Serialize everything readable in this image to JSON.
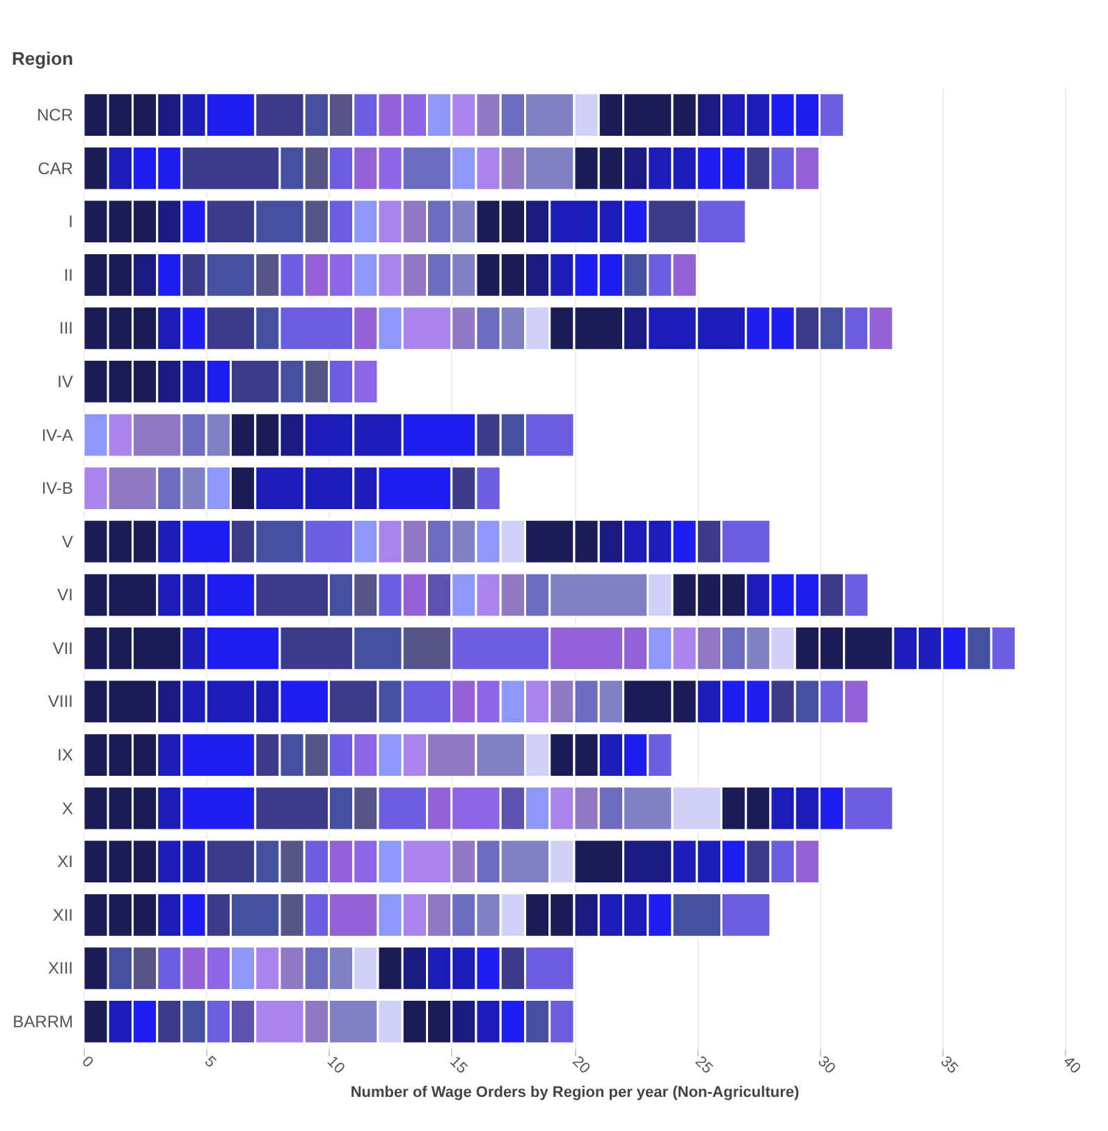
{
  "chart_data": {
    "type": "bar",
    "orientation": "horizontal",
    "stacked": true,
    "xlabel": "Number of Wage Orders by Region per year (Non-Agriculture)",
    "ylabel": "Region",
    "categories": [
      "NCR",
      "CAR",
      "I",
      "II",
      "III",
      "IV",
      "IV-A",
      "IV-B",
      "V",
      "VI",
      "VII",
      "VIII",
      "IX",
      "X",
      "XI",
      "XII",
      "XIII",
      "BARRM"
    ],
    "xlim": [
      0,
      40
    ],
    "xticks": [
      0,
      5,
      10,
      15,
      20,
      25,
      30,
      35,
      40
    ],
    "grid": "x",
    "series": [
      {
        "values": [
          1,
          1,
          1,
          1,
          1,
          1,
          1,
          1,
          1,
          1,
          1,
          1,
          1,
          1,
          1,
          1,
          1,
          1
        ],
        "colors": [
          "#1b1b55",
          "#1b1b55",
          "#1b1b55",
          "#1b1b55",
          "#1b1b55",
          "#1b1b55",
          "#8e98f8",
          "#a884ec",
          "#1b1b55",
          "#1b1b55",
          "#1b1b55",
          "#1b1b55",
          "#1b1b55",
          "#1b1b55",
          "#1b1b55",
          "#1b1b55",
          "#1b1b55",
          "#1b1b55"
        ]
      },
      {
        "values": [
          1,
          1,
          1,
          1,
          1,
          1,
          1,
          2,
          1,
          2,
          1,
          2,
          1,
          1,
          1,
          1,
          1,
          1
        ],
        "colors": [
          "#1b1b55",
          "#1c1cb8",
          "#1b1b55",
          "#1b1b55",
          "#1b1b55",
          "#1b1b55",
          "#a884ec",
          "#9078c4",
          "#1b1b55",
          "#1b1b55",
          "#1b1b55",
          "#1b1b55",
          "#1b1b55",
          "#1b1b55",
          "#1b1b55",
          "#1b1b55",
          "#4650a0",
          "#1c1cb8"
        ]
      },
      {
        "values": [
          1,
          1,
          1,
          1,
          1,
          1,
          2,
          1,
          1,
          1,
          2,
          1,
          1,
          1,
          1,
          1,
          1,
          1
        ],
        "colors": [
          "#1b1b55",
          "#1e1ef0",
          "#1b1b55",
          "#1a1a80",
          "#1b1b55",
          "#1b1b55",
          "#9078c4",
          "#6c6cc0",
          "#1b1b55",
          "#1c1cb8",
          "#1b1b55",
          "#1a1a80",
          "#1b1b55",
          "#1b1b55",
          "#1b1b55",
          "#1b1b55",
          "#555588",
          "#1e1ef0"
        ]
      },
      {
        "values": [
          1,
          1,
          1,
          1,
          1,
          1,
          1,
          1,
          1,
          1,
          1,
          1,
          1,
          1,
          1,
          1,
          1,
          1
        ],
        "colors": [
          "#1a1a80",
          "#1e1ef0",
          "#1a1a80",
          "#1e1ef0",
          "#1c1cb8",
          "#1a1a80",
          "#6c6cc0",
          "#8080c4",
          "#1c1cb8",
          "#1c1cb8",
          "#1c1cb8",
          "#1c1cb8",
          "#1c1cb8",
          "#1c1cb8",
          "#1c1cb8",
          "#1c1cb8",
          "#6c5ee0",
          "#3b3b8a"
        ]
      },
      {
        "values": [
          1,
          4,
          1,
          1,
          1,
          1,
          1,
          1,
          2,
          2,
          3,
          2,
          3,
          3,
          1,
          1,
          1,
          1
        ],
        "colors": [
          "#1c1cb8",
          "#3b3b8a",
          "#1e1ef0",
          "#3b3b8a",
          "#1e1ef0",
          "#1c1cb8",
          "#8080c4",
          "#8e98f8",
          "#1e1ef0",
          "#1e1ef0",
          "#1e1ef0",
          "#1c1cb8",
          "#1e1ef0",
          "#1e1ef0",
          "#1c1cb8",
          "#1e1ef0",
          "#9462d6",
          "#4650a0"
        ]
      },
      {
        "values": [
          2,
          1,
          2,
          2,
          2,
          1,
          1,
          1,
          1,
          3,
          3,
          1,
          1,
          3,
          2,
          1,
          1,
          1
        ],
        "colors": [
          "#1e1ef0",
          "#4650a0",
          "#3b3b8a",
          "#4650a0",
          "#3b3b8a",
          "#1e1ef0",
          "#1b1b55",
          "#1b1b55",
          "#3b3b8a",
          "#3b3b8a",
          "#3b3b8a",
          "#1c1cb8",
          "#3b3b8a",
          "#3b3b8a",
          "#3b3b8a",
          "#3b3b8a",
          "#8c66e4",
          "#6c5ee0"
        ]
      },
      {
        "values": [
          2,
          1,
          2,
          1,
          1,
          2,
          1,
          2,
          2,
          1,
          2,
          2,
          1,
          1,
          1,
          2,
          1,
          1
        ],
        "colors": [
          "#3b3b8a",
          "#555588",
          "#4650a0",
          "#555588",
          "#4650a0",
          "#3b3b8a",
          "#1b1b55",
          "#1c1cb8",
          "#4650a0",
          "#4650a0",
          "#4650a0",
          "#1e1ef0",
          "#4650a0",
          "#4650a0",
          "#4650a0",
          "#4650a0",
          "#8e98f8",
          "#5e52b0"
        ]
      },
      {
        "values": [
          1,
          1,
          1,
          1,
          3,
          1,
          1,
          2,
          2,
          1,
          2,
          2,
          1,
          1,
          1,
          1,
          1,
          2
        ],
        "colors": [
          "#4650a0",
          "#6c5ee0",
          "#555588",
          "#6c5ee0",
          "#6c5ee0",
          "#4650a0",
          "#1a1a80",
          "#1c1cb8",
          "#6c5ee0",
          "#555588",
          "#555588",
          "#3b3b8a",
          "#555588",
          "#555588",
          "#555588",
          "#555588",
          "#a884ec",
          "#a884ec"
        ]
      },
      {
        "values": [
          1,
          1,
          1,
          1,
          1,
          1,
          2,
          1,
          1,
          1,
          4,
          1,
          1,
          2,
          1,
          1,
          1,
          1
        ],
        "colors": [
          "#555588",
          "#9462d6",
          "#6c5ee0",
          "#9462d6",
          "#9462d6",
          "#555588",
          "#1c1cb8",
          "#1c1cb8",
          "#8e98f8",
          "#6c5ee0",
          "#6c5ee0",
          "#4650a0",
          "#6c5ee0",
          "#6c5ee0",
          "#6c5ee0",
          "#6c5ee0",
          "#9078c4",
          "#9078c4"
        ]
      },
      {
        "values": [
          1,
          1,
          1,
          1,
          1,
          1,
          2,
          3,
          1,
          1,
          3,
          2,
          1,
          1,
          1,
          2,
          1,
          2
        ],
        "colors": [
          "#6c5ee0",
          "#8c66e4",
          "#8e98f8",
          "#8c66e4",
          "#8e98f8",
          "#6c5ee0",
          "#1c1cb8",
          "#1e1ef0",
          "#a884ec",
          "#9462d6",
          "#9462d6",
          "#6c5ee0",
          "#8c66e4",
          "#9462d6",
          "#9462d6",
          "#9462d6",
          "#6c6cc0",
          "#8080c4"
        ]
      },
      {
        "values": [
          1,
          2,
          1,
          1,
          2,
          1,
          3,
          1,
          1,
          1,
          1,
          1,
          1,
          2,
          1,
          1,
          1,
          1
        ],
        "colors": [
          "#9462d6",
          "#6c6cc0",
          "#a884ec",
          "#8e98f8",
          "#a884ec",
          "#8c66e4",
          "#1e1ef0",
          "#3b3b8a",
          "#9078c4",
          "#5e52b0",
          "#9462d6",
          "#9462d6",
          "#8e98f8",
          "#8c66e4",
          "#8c66e4",
          "#8e98f8",
          "#8080c4",
          "#d0d0f8"
        ]
      },
      {
        "values": [
          1,
          1,
          1,
          1,
          1,
          null,
          1,
          1,
          1,
          1,
          1,
          1,
          1,
          1,
          1,
          1,
          1,
          1
        ],
        "colors": [
          "#8c66e4",
          "#8e98f8",
          "#9078c4",
          "#a884ec",
          "#9078c4",
          null,
          "#3b3b8a",
          "#6c5ee0",
          "#6c6cc0",
          "#8e98f8",
          "#8e98f8",
          "#8c66e4",
          "#a884ec",
          "#5e52b0",
          "#8e98f8",
          "#a884ec",
          "#d0d0f8",
          "#1b1b55"
        ]
      },
      {
        "values": [
          1,
          1,
          1,
          1,
          1,
          null,
          1,
          null,
          1,
          1,
          1,
          1,
          2,
          1,
          2,
          1,
          1,
          1
        ],
        "colors": [
          "#8e98f8",
          "#a884ec",
          "#6c6cc0",
          "#9078c4",
          "#6c6cc0",
          null,
          "#4650a0",
          null,
          "#8080c4",
          "#a884ec",
          "#a884ec",
          "#8e98f8",
          "#9078c4",
          "#8e98f8",
          "#a884ec",
          "#9078c4",
          "#1b1b55",
          "#1b1b55"
        ]
      },
      {
        "values": [
          1,
          1,
          1,
          1,
          1,
          null,
          2,
          null,
          1,
          1,
          1,
          1,
          2,
          1,
          1,
          1,
          1,
          1
        ],
        "colors": [
          "#a884ec",
          "#9078c4",
          "#8080c4",
          "#6c6cc0",
          "#8080c4",
          null,
          "#6c5ee0",
          null,
          "#8e98f8",
          "#9078c4",
          "#9078c4",
          "#a884ec",
          "#8080c4",
          "#a884ec",
          "#9078c4",
          "#6c6cc0",
          "#1a1a80",
          "#1a1a80"
        ]
      },
      {
        "values": [
          1,
          2,
          1,
          1,
          1,
          null,
          null,
          null,
          1,
          1,
          1,
          1,
          1,
          1,
          1,
          1,
          1,
          1
        ],
        "colors": [
          "#9078c4",
          "#8080c4",
          "#1b1b55",
          "#8080c4",
          "#d0d0f8",
          null,
          null,
          null,
          "#d0d0f8",
          "#6c6cc0",
          "#6c6cc0",
          "#9078c4",
          "#d0d0f8",
          "#9078c4",
          "#6c6cc0",
          "#8080c4",
          "#1c1cb8",
          "#1c1cb8"
        ]
      },
      {
        "values": [
          1,
          1,
          1,
          1,
          1,
          null,
          null,
          null,
          2,
          4,
          1,
          1,
          1,
          1,
          2,
          1,
          1,
          1
        ],
        "colors": [
          "#6c6cc0",
          "#1b1b55",
          "#1b1b55",
          "#1b1b55",
          "#1b1b55",
          null,
          null,
          null,
          "#1b1b55",
          "#8080c4",
          "#8080c4",
          "#6c6cc0",
          "#1b1b55",
          "#6c6cc0",
          "#8080c4",
          "#d0d0f8",
          "#1c1cb8",
          "#1e1ef0"
        ]
      },
      {
        "values": [
          2,
          1,
          1,
          1,
          2,
          null,
          null,
          null,
          1,
          1,
          1,
          1,
          1,
          2,
          1,
          1,
          1,
          1
        ],
        "colors": [
          "#8080c4",
          "#1b1b55",
          "#1a1a80",
          "#1b1b55",
          "#1b1b55",
          null,
          null,
          null,
          "#1b1b55",
          "#d0d0f8",
          "#d0d0f8",
          "#8080c4",
          "#1b1b55",
          "#8080c4",
          "#d0d0f8",
          "#1b1b55",
          "#1e1ef0",
          "#4650a0"
        ]
      },
      {
        "values": [
          1,
          1,
          2,
          1,
          1,
          null,
          null,
          null,
          1,
          1,
          1,
          2,
          1,
          2,
          2,
          1,
          1,
          1
        ],
        "colors": [
          "#d0d0f8",
          "#1a1a80",
          "#1c1cb8",
          "#1a1a80",
          "#1a1a80",
          null,
          null,
          null,
          "#1a1a80",
          "#1b1b55",
          "#1b1b55",
          "#1b1b55",
          "#1c1cb8",
          "#d0d0f8",
          "#1b1b55",
          "#1b1b55",
          "#3b3b8a",
          "#6c5ee0"
        ]
      },
      {
        "values": [
          1,
          1,
          1,
          1,
          2,
          null,
          null,
          null,
          1,
          1,
          1,
          1,
          1,
          1,
          2,
          1,
          2,
          null
        ],
        "colors": [
          "#1b1b55",
          "#1c1cb8",
          "#1c1cb8",
          "#1c1cb8",
          "#1c1cb8",
          null,
          null,
          null,
          "#1c1cb8",
          "#1b1b55",
          "#1b1b55",
          "#1b1b55",
          "#1e1ef0",
          "#1b1b55",
          "#1a1a80",
          "#1a1a80",
          "#6c5ee0",
          null
        ]
      },
      {
        "values": [
          2,
          1,
          1,
          1,
          2,
          null,
          null,
          null,
          1,
          1,
          2,
          1,
          1,
          1,
          1,
          1,
          null,
          null
        ],
        "colors": [
          "#1b1b55",
          "#1c1cb8",
          "#1e1ef0",
          "#1e1ef0",
          "#1c1cb8",
          null,
          null,
          null,
          "#1c1cb8",
          "#1b1b55",
          "#1b1b55",
          "#1c1cb8",
          "#6c5ee0",
          "#1b1b55",
          "#1c1cb8",
          "#1c1cb8",
          null,
          null
        ]
      },
      {
        "values": [
          1,
          1,
          2,
          1,
          1,
          null,
          null,
          null,
          1,
          1,
          1,
          1,
          null,
          1,
          1,
          1,
          null,
          null
        ],
        "colors": [
          "#1b1b55",
          "#1e1ef0",
          "#3b3b8a",
          "#1e1ef0",
          "#1e1ef0",
          null,
          null,
          null,
          "#1e1ef0",
          "#1c1cb8",
          "#1c1cb8",
          "#1e1ef0",
          null,
          "#1c1cb8",
          "#1c1cb8",
          "#1c1cb8",
          null,
          null
        ]
      },
      {
        "values": [
          1,
          1,
          2,
          1,
          1,
          null,
          null,
          null,
          1,
          1,
          1,
          1,
          null,
          1,
          1,
          1,
          null,
          null
        ],
        "colors": [
          "#1a1a80",
          "#1e1ef0",
          "#6c5ee0",
          "#4650a0",
          "#1e1ef0",
          null,
          null,
          null,
          "#3b3b8a",
          "#1e1ef0",
          "#1c1cb8",
          "#1e1ef0",
          null,
          "#1c1cb8",
          "#1e1ef0",
          "#1e1ef0",
          null,
          null
        ]
      },
      {
        "values": [
          1,
          1,
          null,
          1,
          1,
          null,
          null,
          null,
          2,
          1,
          1,
          1,
          null,
          1,
          1,
          2,
          null,
          null
        ],
        "colors": [
          "#1c1cb8",
          "#3b3b8a",
          null,
          "#6c5ee0",
          "#3b3b8a",
          null,
          null,
          null,
          "#6c5ee0",
          "#1e1ef0",
          "#1e1ef0",
          "#3b3b8a",
          null,
          "#1e1ef0",
          "#3b3b8a",
          "#4650a0",
          null,
          null
        ]
      },
      {
        "values": [
          1,
          1,
          null,
          1,
          1,
          null,
          null,
          null,
          null,
          1,
          1,
          1,
          null,
          2,
          1,
          2,
          null,
          null
        ],
        "colors": [
          "#1c1cb8",
          "#6c5ee0",
          null,
          "#9462d6",
          "#4650a0",
          null,
          null,
          null,
          null,
          "#3b3b8a",
          "#4650a0",
          "#4650a0",
          null,
          "#6c5ee0",
          "#6c5ee0",
          "#6c5ee0",
          null,
          null
        ]
      },
      {
        "values": [
          1,
          1,
          null,
          null,
          1,
          null,
          null,
          null,
          null,
          1,
          1,
          1,
          null,
          null,
          1,
          null,
          null,
          null
        ],
        "colors": [
          "#1e1ef0",
          "#9462d6",
          null,
          null,
          "#6c5ee0",
          null,
          null,
          null,
          null,
          "#6c5ee0",
          "#6c5ee0",
          "#6c5ee0",
          null,
          null,
          "#9462d6",
          null,
          null,
          null
        ]
      },
      {
        "values": [
          1,
          null,
          null,
          null,
          1,
          null,
          null,
          null,
          null,
          null,
          null,
          1,
          null,
          null,
          null,
          null,
          null,
          null
        ],
        "colors": [
          "#1e1ef0",
          null,
          null,
          null,
          "#9462d6",
          null,
          null,
          null,
          null,
          null,
          null,
          "#9462d6",
          null,
          null,
          null,
          null,
          null,
          null
        ]
      },
      {
        "values": [
          1,
          null,
          null,
          null,
          null,
          null,
          null,
          null,
          null,
          null,
          null,
          null,
          null,
          null,
          null,
          null,
          null,
          null
        ],
        "colors": [
          "#6c5ee0",
          null,
          null,
          null,
          null,
          null,
          null,
          null,
          null,
          null,
          null,
          null,
          null,
          null,
          null,
          null,
          null,
          null
        ]
      }
    ]
  }
}
